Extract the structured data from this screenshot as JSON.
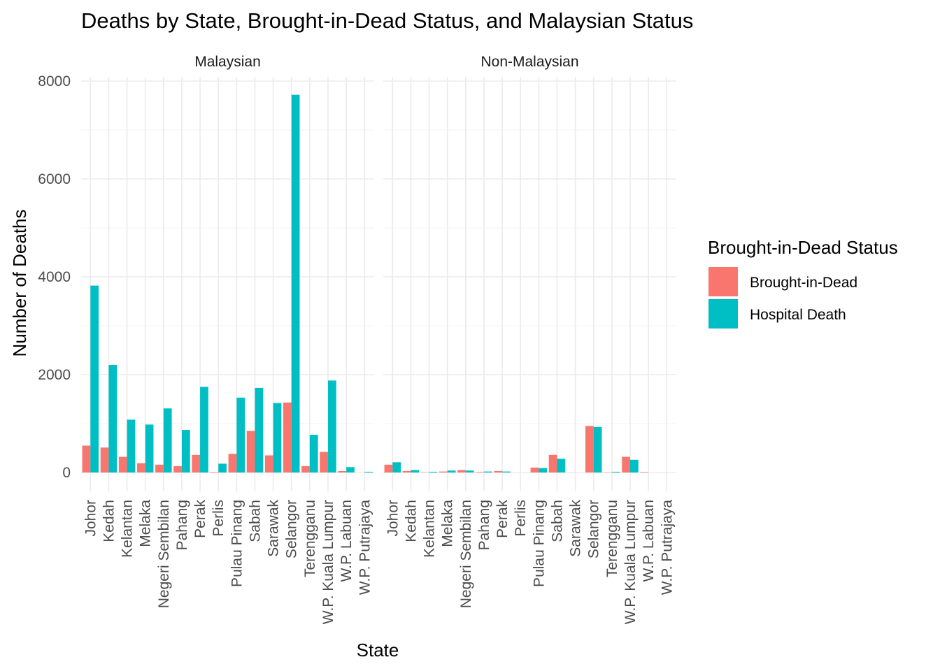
{
  "chart_data": {
    "type": "bar",
    "title": "Deaths by State, Brought-in-Dead Status, and Malaysian Status",
    "xlabel": "State",
    "ylabel": "Number of Deaths",
    "ylim": [
      0,
      8000
    ],
    "yticks": [
      0,
      2000,
      4000,
      6000,
      8000
    ],
    "grid": true,
    "legend_position": "right",
    "legend_title": "Brought-in-Dead Status",
    "categories": [
      "Johor",
      "Kedah",
      "Kelantan",
      "Melaka",
      "Negeri Sembilan",
      "Pahang",
      "Perak",
      "Perlis",
      "Pulau Pinang",
      "Sabah",
      "Sarawak",
      "Selangor",
      "Terengganu",
      "W.P. Kuala Lumpur",
      "W.P. Labuan",
      "W.P. Putrajaya"
    ],
    "series_names": [
      "Brought-in-Dead",
      "Hospital Death"
    ],
    "colors": {
      "Brought-in-Dead": "#F8766D",
      "Hospital Death": "#00BFC4"
    },
    "facets": [
      {
        "name": "Malaysian",
        "series": [
          {
            "name": "Brought-in-Dead",
            "values": [
              550,
              510,
              320,
              190,
              160,
              130,
              360,
              10,
              380,
              850,
              350,
              1430,
              130,
              420,
              30,
              0
            ]
          },
          {
            "name": "Hospital Death",
            "values": [
              3820,
              2200,
              1080,
              980,
              1310,
              870,
              1750,
              180,
              1530,
              1730,
              1420,
              7720,
              770,
              1880,
              110,
              15
            ]
          }
        ]
      },
      {
        "name": "Non-Malaysian",
        "series": [
          {
            "name": "Brought-in-Dead",
            "values": [
              160,
              30,
              5,
              20,
              50,
              10,
              30,
              0,
              100,
              360,
              0,
              950,
              5,
              320,
              10,
              0
            ]
          },
          {
            "name": "Hospital Death",
            "values": [
              210,
              50,
              15,
              40,
              40,
              20,
              20,
              0,
              90,
              280,
              0,
              930,
              15,
              260,
              0,
              0
            ]
          }
        ]
      }
    ]
  }
}
